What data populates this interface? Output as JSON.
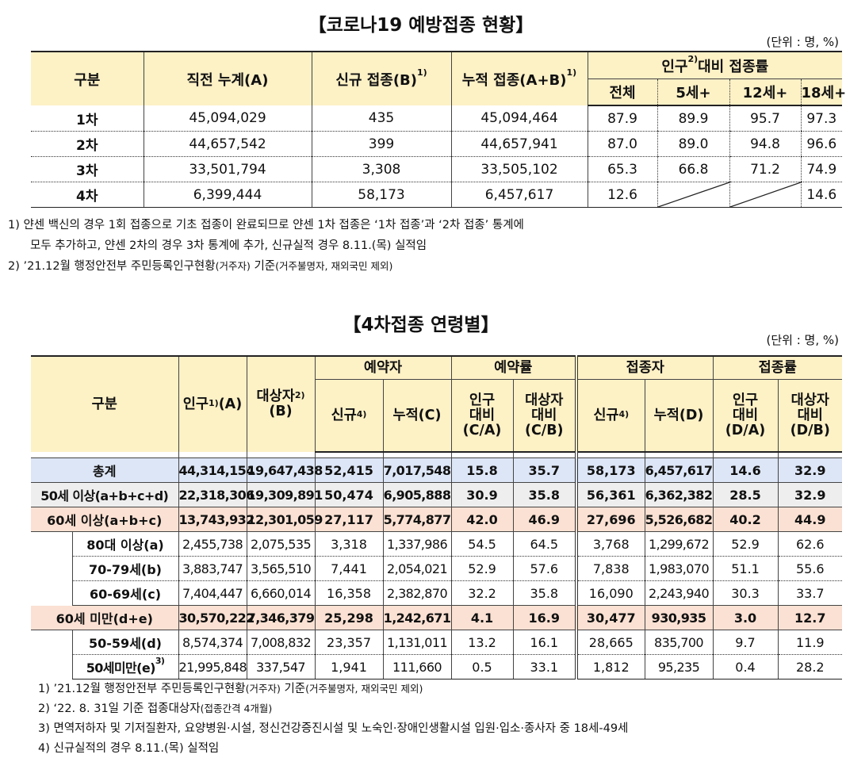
{
  "table1": {
    "title": "【코로나19 예방접종 현황】",
    "unit": "(단위 : 명, %)",
    "headers": {
      "category": "구분",
      "prev": "직전 누계(A)",
      "new": "신규 접종(B)",
      "new_sup": "1)",
      "cum": "누적 접종(A+B)",
      "cum_sup": "1)",
      "rate": "인구",
      "rate_sup": "2)",
      "rate_rest": "대비 접종률",
      "all": "전체",
      "age5": "5세+",
      "age12": "12세+",
      "age18": "18세+"
    },
    "rows": [
      {
        "label": "1차",
        "prev": "45,094,029",
        "new": "435",
        "cum": "45,094,464",
        "all": "87.9",
        "age5": "89.9",
        "age12": "95.7",
        "age18": "97.3"
      },
      {
        "label": "2차",
        "prev": "44,657,542",
        "new": "399",
        "cum": "44,657,941",
        "all": "87.0",
        "age5": "89.0",
        "age12": "94.8",
        "age18": "96.6"
      },
      {
        "label": "3차",
        "prev": "33,501,794",
        "new": "3,308",
        "cum": "33,505,102",
        "all": "65.3",
        "age5": "66.8",
        "age12": "71.2",
        "age18": "74.9"
      },
      {
        "label": "4차",
        "prev": "6,399,444",
        "new": "58,173",
        "cum": "6,457,617",
        "all": "12.6",
        "age5": "",
        "age12": "",
        "age18": "14.6"
      }
    ],
    "notes": [
      "1) 얀센 백신의 경우 1회 접종으로 기초 접종이 완료되므로 얀센 1차 접종은 ‘1차 접종’과 ‘2차 접종’ 통계에",
      "모두 추가하고, 얀센 2차의 경우 3차 통계에 추가, 신규실적 경우 8.11.(목) 실적임"
    ],
    "note2": {
      "a": "2) ’21.12월 행정안전부 주민등록인구현황",
      "b": "(거주자)",
      "c": " 기준",
      "d": "(거주불명자, 재외국민 제외)"
    }
  },
  "table2": {
    "title": "【4차접종 연령별】",
    "unit": "(단위 : 명, %)",
    "headers": {
      "category": "구분",
      "pop": "인구",
      "pop_sup": "1)",
      "pop_rest": "(A)",
      "target": "대상자",
      "target_sup": "2)",
      "target_rest": "(B)",
      "res": "예약자",
      "res_rate": "예약률",
      "vac": "접종자",
      "vac_rate": "접종률",
      "new": "신규",
      "new_sup": "4)",
      "res_cum": "누적(C)",
      "pop_ratio": "인구",
      "ratio": "대비",
      "ca": "(C/A)",
      "target_ratio": "대상자",
      "cb": "(C/B)",
      "vac_cum": "누적(D)",
      "da": "(D/A)",
      "db": "(D/B)"
    },
    "rows": [
      {
        "label": "총계",
        "pop": "44,314,154",
        "target": "19,647,438",
        "res_new": "52,415",
        "res_cum": "7,017,548",
        "ca": "15.8",
        "cb": "35.7",
        "vac_new": "58,173",
        "vac_cum": "6,457,617",
        "da": "14.6",
        "db": "32.9"
      },
      {
        "label": "50세 이상(a+b+c+d)",
        "pop": "22,318,306",
        "target": "19,309,891",
        "res_new": "50,474",
        "res_cum": "6,905,888",
        "ca": "30.9",
        "cb": "35.8",
        "vac_new": "56,361",
        "vac_cum": "6,362,382",
        "da": "28.5",
        "db": "32.9"
      },
      {
        "label": "60세 이상(a+b+c)",
        "pop": "13,743,932",
        "target": "12,301,059",
        "res_new": "27,117",
        "res_cum": "5,774,877",
        "ca": "42.0",
        "cb": "46.9",
        "vac_new": "27,696",
        "vac_cum": "5,526,682",
        "da": "40.2",
        "db": "44.9"
      },
      {
        "label": "80대 이상(a)",
        "pop": "2,455,738",
        "target": "2,075,535",
        "res_new": "3,318",
        "res_cum": "1,337,986",
        "ca": "54.5",
        "cb": "64.5",
        "vac_new": "3,768",
        "vac_cum": "1,299,672",
        "da": "52.9",
        "db": "62.6"
      },
      {
        "label": "70-79세(b)",
        "pop": "3,883,747",
        "target": "3,565,510",
        "res_new": "7,441",
        "res_cum": "2,054,021",
        "ca": "52.9",
        "cb": "57.6",
        "vac_new": "7,838",
        "vac_cum": "1,983,070",
        "da": "51.1",
        "db": "55.6"
      },
      {
        "label": "60-69세(c)",
        "pop": "7,404,447",
        "target": "6,660,014",
        "res_new": "16,358",
        "res_cum": "2,382,870",
        "ca": "32.2",
        "cb": "35.8",
        "vac_new": "16,090",
        "vac_cum": "2,243,940",
        "da": "30.3",
        "db": "33.7"
      },
      {
        "label": "60세 미만(d+e)",
        "pop": "30,570,222",
        "target": "7,346,379",
        "res_new": "25,298",
        "res_cum": "1,242,671",
        "ca": "4.1",
        "cb": "16.9",
        "vac_new": "30,477",
        "vac_cum": "930,935",
        "da": "3.0",
        "db": "12.7"
      },
      {
        "label": "50-59세(d)",
        "pop": "8,574,374",
        "target": "7,008,832",
        "res_new": "23,357",
        "res_cum": "1,131,011",
        "ca": "13.2",
        "cb": "16.1",
        "vac_new": "28,665",
        "vac_cum": "835,700",
        "da": "9.7",
        "db": "11.9"
      },
      {
        "label": "50세미만(e)",
        "label_sup": "3)",
        "pop": "21,995,848",
        "target": "337,547",
        "res_new": "1,941",
        "res_cum": "111,660",
        "ca": "0.5",
        "cb": "33.1",
        "vac_new": "1,812",
        "vac_cum": "95,235",
        "da": "0.4",
        "db": "28.2"
      }
    ],
    "note1": {
      "a": "1) ’21.12월 행정안전부 주민등록인구현황",
      "b": "(거주자)",
      "c": " 기준",
      "d": "(거주불명자, 재외국민 제외)"
    },
    "note2": {
      "a": "2) ‘22. 8. 31일 기준 접종대상자",
      "b": "(접종간격 4개월)"
    },
    "note3": "3) 면역저하자 및 기저질환자, 요양병원·시설, 정신건강증진시설 및 노숙인·장애인생활시설 입원·입소·종사자 중 18세-49세",
    "note4": "4) 신규실적의 경우 8.11.(목) 실적임"
  }
}
